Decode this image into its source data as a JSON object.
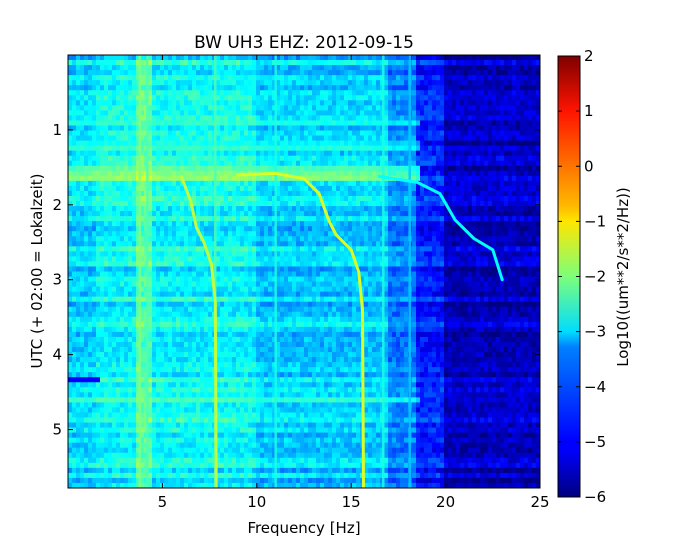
{
  "chart_data": {
    "type": "heatmap",
    "title": "BW UH3 EHZ: 2012-09-15",
    "xlabel": "Frequency [Hz]",
    "ylabel": "UTC (+ 02:00 = Lokalzeit)",
    "xlim": [
      0,
      25
    ],
    "ylim": [
      5.78,
      0
    ],
    "xticks": [
      5,
      10,
      15,
      20,
      25
    ],
    "yticks": [
      1,
      2,
      3,
      4,
      5
    ],
    "colorbar": {
      "label": "Log10((um**2/s**2/Hz))",
      "range": [
        -6,
        2
      ],
      "ticks": [
        -6,
        -5,
        -4,
        -3,
        -2,
        -1,
        0,
        1,
        2
      ],
      "tick_labels": [
        "−6",
        "−5",
        "−4",
        "−3",
        "−2",
        "−1",
        "0",
        "1",
        "2"
      ],
      "colormap": "jet"
    },
    "background_levels": [
      {
        "x": [
          0,
          1.5
        ],
        "value": -3.3
      },
      {
        "x": [
          1.5,
          3.5
        ],
        "value": -3.0
      },
      {
        "x": [
          3.5,
          4.5
        ],
        "value": -2.3
      },
      {
        "x": [
          4.5,
          10
        ],
        "value": -3.0
      },
      {
        "x": [
          10,
          17
        ],
        "value": -3.4
      },
      {
        "x": [
          17,
          18.5
        ],
        "value": -4.0
      },
      {
        "x": [
          18.5,
          20
        ],
        "value": -4.8
      },
      {
        "x": [
          20,
          25
        ],
        "value": -5.5
      }
    ],
    "tonal_lines": [
      {
        "value": -1.5,
        "points": [
          [
            6.0,
            1.62
          ],
          [
            6.5,
            1.95
          ],
          [
            6.8,
            2.3
          ],
          [
            7.2,
            2.5
          ],
          [
            7.6,
            2.8
          ],
          [
            7.8,
            3.3
          ],
          [
            7.85,
            5.78
          ]
        ]
      },
      {
        "value": -1.3,
        "points": [
          [
            9.0,
            1.6
          ],
          [
            11.0,
            1.58
          ],
          [
            12.5,
            1.65
          ],
          [
            13.3,
            1.85
          ],
          [
            13.8,
            2.2
          ],
          [
            14.2,
            2.4
          ],
          [
            15.0,
            2.6
          ],
          [
            15.4,
            2.9
          ],
          [
            15.6,
            3.4
          ],
          [
            15.65,
            5.78
          ]
        ]
      },
      {
        "value": -3.0,
        "points": [
          [
            16.5,
            1.62
          ],
          [
            18.5,
            1.7
          ],
          [
            19.7,
            1.85
          ],
          [
            20.5,
            2.2
          ],
          [
            21.5,
            2.45
          ],
          [
            22.5,
            2.6
          ],
          [
            23.0,
            3.0
          ]
        ]
      }
    ],
    "vertical_lines": [
      {
        "x": 3.8,
        "value": -2.0
      },
      {
        "x": 4.2,
        "value": -2.4
      },
      {
        "x": 7.8,
        "value": -2.4
      },
      {
        "x": 11.0,
        "value": -2.8
      },
      {
        "x": 16.7,
        "value": -2.8
      },
      {
        "x": 18.1,
        "value": -3.4
      }
    ],
    "horizontal_bands": [
      {
        "y": 0.9,
        "value": -2.7
      },
      {
        "y": 1.2,
        "value": -2.9
      },
      {
        "y": 1.55,
        "value": -1.8
      },
      {
        "y": 1.6,
        "value": -1.6
      },
      {
        "y": 4.35,
        "value": -5.0
      },
      {
        "y": 4.6,
        "value": -2.6
      }
    ]
  }
}
